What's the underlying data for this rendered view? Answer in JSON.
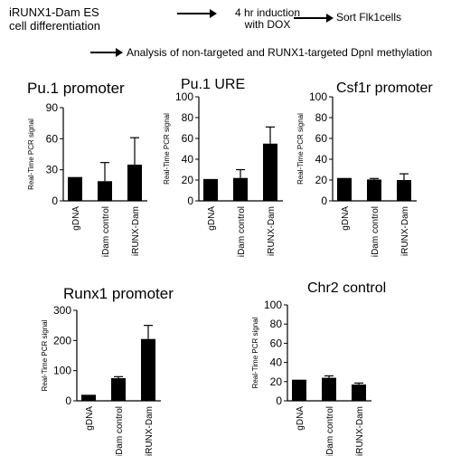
{
  "flow": {
    "step1": "iRUNX1-Dam ES cell differentiation",
    "step2": "4 hr induction with DOX",
    "step3": "Sort Flk1cells",
    "step4": "Analysis of non-targeted and RUNX1-targeted DpnI methylation"
  },
  "chart_data": [
    {
      "type": "bar",
      "title": "Pu.1 promoter",
      "ylabel": "Real-Time PCR signal",
      "xlabel": "",
      "categories": [
        "gDNA",
        "iDam control",
        "iRUNX-Dam"
      ],
      "values": [
        23,
        19,
        35
      ],
      "errors": [
        0,
        18,
        26
      ],
      "ylim": [
        0,
        90
      ],
      "yticks": [
        0,
        30,
        60,
        90
      ]
    },
    {
      "type": "bar",
      "title": "Pu.1 URE",
      "ylabel": "Real-Time PCR signal",
      "xlabel": "",
      "categories": [
        "gDNA",
        "iDam control",
        "iRUNX-Dam"
      ],
      "values": [
        21,
        22,
        55
      ],
      "errors": [
        0,
        8,
        16
      ],
      "ylim": [
        0,
        100
      ],
      "yticks": [
        0,
        20,
        40,
        60,
        80,
        100
      ]
    },
    {
      "type": "bar",
      "title": "Csf1r promoter",
      "ylabel": "Real-Time PCR signal",
      "xlabel": "",
      "categories": [
        "gDNA",
        "iDam control",
        "iRUNX-Dam"
      ],
      "values": [
        22,
        20.5,
        20
      ],
      "errors": [
        0,
        1,
        6
      ],
      "ylim": [
        0,
        100
      ],
      "yticks": [
        0,
        20,
        40,
        60,
        80,
        100
      ]
    },
    {
      "type": "bar",
      "title": "Runx1 promoter",
      "ylabel": "Real-Time PCR signal",
      "xlabel": "",
      "categories": [
        "gDNA",
        "iDam control",
        "iRUNX-Dam"
      ],
      "values": [
        20,
        75,
        205
      ],
      "errors": [
        0,
        5,
        45
      ],
      "ylim": [
        0,
        300
      ],
      "yticks": [
        0,
        100,
        200,
        300
      ]
    },
    {
      "type": "bar",
      "title": "Chr2 control",
      "ylabel": "Real-Time PCR signal",
      "xlabel": "",
      "categories": [
        "gDNA",
        "iDam control",
        "iRUNX-Dam"
      ],
      "values": [
        22,
        24,
        17
      ],
      "errors": [
        0,
        2,
        1.5
      ],
      "ylim": [
        0,
        100
      ],
      "yticks": [
        0,
        20,
        40,
        60,
        80,
        100
      ]
    }
  ]
}
